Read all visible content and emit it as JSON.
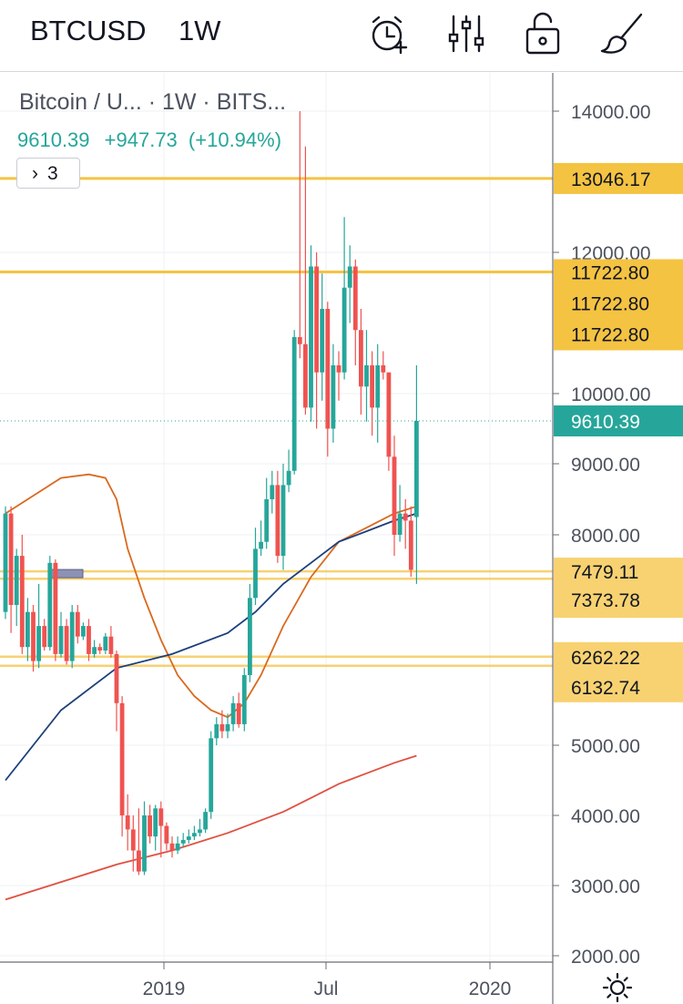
{
  "toolbar": {
    "symbol": "BTCUSD",
    "interval": "1W",
    "icons": [
      "alarm-add-icon",
      "indicators-icon",
      "lock-icon",
      "brush-icon"
    ]
  },
  "legend": {
    "title": "Bitcoin / U...  ·  1W · BITS...",
    "last": "9610.39",
    "change": "+947.73",
    "change_pct": "(+10.94%)",
    "collapse_label": "3"
  },
  "colors": {
    "up": "#26a69a",
    "down": "#ef5350",
    "level": "#f5c342",
    "ma_orange": "#d9691e",
    "ma_blue": "#1c3f7a",
    "ma_red": "#e05040"
  },
  "chart_data": {
    "type": "candlestick",
    "ylim": [
      2000,
      14000
    ],
    "y_ticks": [
      "14000.00",
      "12000.00",
      "10000.00",
      "9000.00",
      "8000.00",
      "5000.00",
      "4000.00",
      "3000.00",
      "2000.00"
    ],
    "x_ticks": [
      "2019",
      "Jul",
      "2020"
    ],
    "last_price": "9610.39",
    "levels": [
      {
        "value": 13046.17,
        "label": "13046.17"
      },
      {
        "value": 11722.8,
        "label": "11722.80"
      },
      {
        "value": 7479.11,
        "label": "7479.11"
      },
      {
        "value": 7373.78,
        "label": "7373.78"
      },
      {
        "value": 6262.22,
        "label": "6262.22"
      },
      {
        "value": 6132.74,
        "label": "6132.74"
      }
    ],
    "extra_level_labels": [
      "11722.80",
      "11722.80"
    ],
    "candles": [
      [
        6900,
        8300,
        6800,
        8400
      ],
      [
        8300,
        7000,
        6600,
        8400
      ],
      [
        7000,
        7700,
        6700,
        7800
      ],
      [
        7700,
        6400,
        6300,
        8000
      ],
      [
        6400,
        6900,
        6200,
        7100
      ],
      [
        6900,
        6200,
        6050,
        7000
      ],
      [
        6200,
        6700,
        6100,
        7300
      ],
      [
        6700,
        6400,
        6350,
        6800
      ],
      [
        6400,
        7600,
        6350,
        7700
      ],
      [
        7600,
        6300,
        6200,
        7650
      ],
      [
        6300,
        6700,
        6250,
        6900
      ],
      [
        6700,
        6200,
        6150,
        6800
      ],
      [
        6200,
        6900,
        6100,
        7000
      ],
      [
        6900,
        6550,
        6450,
        7000
      ],
      [
        6550,
        6700,
        6500,
        6750
      ],
      [
        6700,
        6300,
        6200,
        6800
      ],
      [
        6300,
        6400,
        6250,
        6500
      ],
      [
        6400,
        6350,
        6300,
        6450
      ],
      [
        6350,
        6550,
        6300,
        6600
      ],
      [
        6550,
        6300,
        6250,
        6700
      ],
      [
        6300,
        5600,
        5200,
        6350
      ],
      [
        5600,
        4000,
        3700,
        5700
      ],
      [
        4000,
        3800,
        3500,
        4300
      ],
      [
        3800,
        3500,
        3200,
        4000
      ],
      [
        3500,
        3200,
        3150,
        4100
      ],
      [
        3200,
        4000,
        3150,
        4200
      ],
      [
        4000,
        3700,
        3600,
        4150
      ],
      [
        3700,
        4100,
        3500,
        4150
      ],
      [
        4100,
        3850,
        3400,
        4200
      ],
      [
        3850,
        3600,
        3500,
        3900
      ],
      [
        3600,
        3500,
        3400,
        3700
      ],
      [
        3500,
        3600,
        3450,
        3700
      ],
      [
        3600,
        3650,
        3550,
        3750
      ],
      [
        3650,
        3700,
        3600,
        3800
      ],
      [
        3700,
        3750,
        3650,
        3850
      ],
      [
        3750,
        3800,
        3700,
        3950
      ],
      [
        3800,
        4050,
        3750,
        4100
      ],
      [
        4050,
        5100,
        3950,
        5200
      ],
      [
        5100,
        5300,
        5000,
        5400
      ],
      [
        5300,
        5200,
        5100,
        5500
      ],
      [
        5200,
        5300,
        5100,
        5450
      ],
      [
        5300,
        5600,
        5200,
        5700
      ],
      [
        5600,
        5300,
        5250,
        5750
      ],
      [
        5300,
        6000,
        5200,
        6100
      ],
      [
        6000,
        7100,
        5900,
        7300
      ],
      [
        7100,
        7800,
        7000,
        8100
      ],
      [
        7800,
        7900,
        7700,
        8200
      ],
      [
        7900,
        8500,
        7800,
        8800
      ],
      [
        8500,
        8700,
        8300,
        8900
      ],
      [
        8700,
        7700,
        7600,
        8900
      ],
      [
        7700,
        8700,
        7500,
        9000
      ],
      [
        8700,
        8900,
        8600,
        9200
      ],
      [
        8900,
        10800,
        8850,
        10900
      ],
      [
        10800,
        10700,
        10500,
        14000
      ],
      [
        10700,
        9800,
        9700,
        13500
      ],
      [
        9800,
        11800,
        9600,
        12100
      ],
      [
        11800,
        10300,
        9500,
        12000
      ],
      [
        10300,
        11200,
        9900,
        11700
      ],
      [
        11200,
        9500,
        9100,
        11300
      ],
      [
        9500,
        10400,
        9300,
        10700
      ],
      [
        10400,
        10300,
        9900,
        10600
      ],
      [
        10300,
        11500,
        10200,
        12500
      ],
      [
        11500,
        11800,
        11000,
        12100
      ],
      [
        11800,
        10900,
        10400,
        11900
      ],
      [
        10900,
        10100,
        9700,
        11200
      ],
      [
        10100,
        10400,
        9600,
        10900
      ],
      [
        10400,
        9800,
        9400,
        10600
      ],
      [
        9800,
        10400,
        9300,
        10700
      ],
      [
        10400,
        10300,
        10200,
        10600
      ],
      [
        10300,
        9100,
        8900,
        10300
      ],
      [
        9100,
        8000,
        7700,
        9400
      ],
      [
        8000,
        8300,
        7900,
        8700
      ],
      [
        8300,
        8200,
        7800,
        8500
      ],
      [
        8200,
        7500,
        7400,
        8400
      ],
      [
        8250,
        9610.39,
        7300,
        10400
      ]
    ],
    "ma_orange": [
      [
        0,
        8300
      ],
      [
        5,
        8550
      ],
      [
        10,
        8800
      ],
      [
        15,
        8850
      ],
      [
        18,
        8800
      ],
      [
        20,
        8500
      ],
      [
        22,
        7800
      ],
      [
        25,
        7100
      ],
      [
        28,
        6500
      ],
      [
        31,
        6000
      ],
      [
        34,
        5700
      ],
      [
        37,
        5500
      ],
      [
        40,
        5400
      ],
      [
        43,
        5600
      ],
      [
        46,
        6000
      ],
      [
        50,
        6700
      ],
      [
        55,
        7400
      ],
      [
        60,
        7900
      ],
      [
        65,
        8100
      ],
      [
        70,
        8300
      ],
      [
        74,
        8400
      ]
    ],
    "ma_blue": [
      [
        0,
        4500
      ],
      [
        10,
        5500
      ],
      [
        20,
        6100
      ],
      [
        30,
        6300
      ],
      [
        40,
        6600
      ],
      [
        45,
        6900
      ],
      [
        50,
        7300
      ],
      [
        55,
        7600
      ],
      [
        60,
        7900
      ],
      [
        65,
        8050
      ],
      [
        70,
        8200
      ],
      [
        74,
        8300
      ]
    ],
    "ma_red": [
      [
        0,
        2800
      ],
      [
        10,
        3050
      ],
      [
        20,
        3300
      ],
      [
        30,
        3500
      ],
      [
        40,
        3750
      ],
      [
        45,
        3900
      ],
      [
        50,
        4050
      ],
      [
        55,
        4250
      ],
      [
        60,
        4450
      ],
      [
        65,
        4600
      ],
      [
        70,
        4750
      ],
      [
        74,
        4850
      ]
    ]
  }
}
